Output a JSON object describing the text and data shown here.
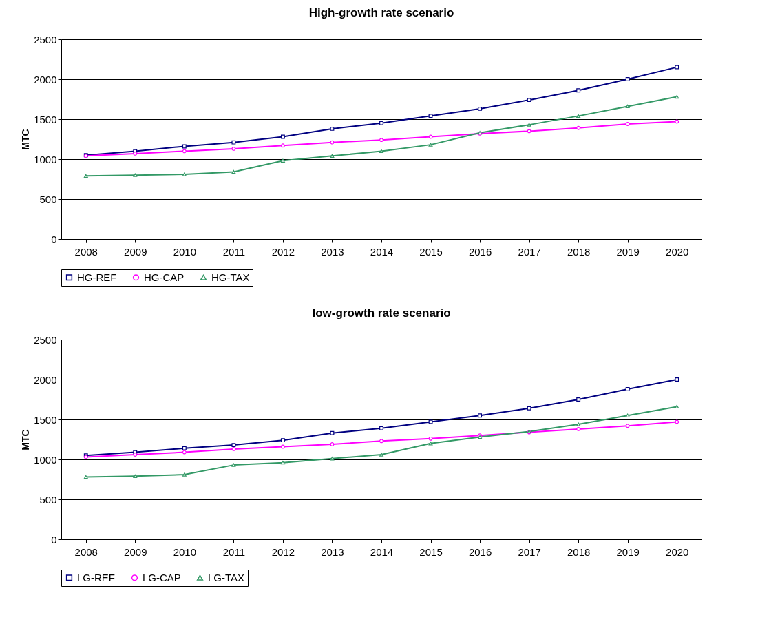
{
  "chart_data": [
    {
      "type": "line",
      "title": "High-growth rate scenario",
      "ylabel": "MTC",
      "categories": [
        "2008",
        "2009",
        "2010",
        "2011",
        "2012",
        "2013",
        "2014",
        "2015",
        "2016",
        "2017",
        "2018",
        "2019",
        "2020"
      ],
      "ylim": [
        0,
        2500
      ],
      "yticks": [
        0,
        500,
        1000,
        1500,
        2000,
        2500
      ],
      "grid": "y",
      "legend": "bottom",
      "line_style": "solid",
      "series": [
        {
          "name": "HG-REF",
          "color": "#000080",
          "marker": "square",
          "values": [
            1050,
            1100,
            1160,
            1210,
            1280,
            1380,
            1450,
            1540,
            1630,
            1740,
            1860,
            2000,
            2150
          ]
        },
        {
          "name": "HG-CAP",
          "color": "#ff00ff",
          "marker": "circle",
          "values": [
            1040,
            1070,
            1100,
            1130,
            1170,
            1210,
            1240,
            1280,
            1320,
            1350,
            1390,
            1440,
            1470
          ]
        },
        {
          "name": "HG-TAX",
          "color": "#339966",
          "marker": "triangle",
          "values": [
            790,
            800,
            810,
            840,
            980,
            1040,
            1100,
            1180,
            1330,
            1430,
            1540,
            1660,
            1780
          ]
        }
      ]
    },
    {
      "type": "line",
      "title": "low-growth rate scenario",
      "ylabel": "MTC",
      "categories": [
        "2008",
        "2009",
        "2010",
        "2011",
        "2012",
        "2013",
        "2014",
        "2015",
        "2016",
        "2017",
        "2018",
        "2019",
        "2020"
      ],
      "ylim": [
        0,
        2500
      ],
      "yticks": [
        0,
        500,
        1000,
        1500,
        2000,
        2500
      ],
      "grid": "y",
      "legend": "bottom",
      "line_style": "solid",
      "series": [
        {
          "name": "LG-REF",
          "color": "#000080",
          "marker": "square",
          "values": [
            1050,
            1090,
            1140,
            1180,
            1240,
            1330,
            1390,
            1470,
            1550,
            1640,
            1750,
            1880,
            2000
          ]
        },
        {
          "name": "LG-CAP",
          "color": "#ff00ff",
          "marker": "circle",
          "values": [
            1030,
            1060,
            1090,
            1130,
            1160,
            1190,
            1230,
            1260,
            1300,
            1340,
            1380,
            1420,
            1470
          ]
        },
        {
          "name": "LG-TAX",
          "color": "#339966",
          "marker": "triangle",
          "values": [
            780,
            790,
            810,
            930,
            960,
            1010,
            1060,
            1200,
            1280,
            1350,
            1440,
            1550,
            1660
          ]
        }
      ]
    }
  ]
}
